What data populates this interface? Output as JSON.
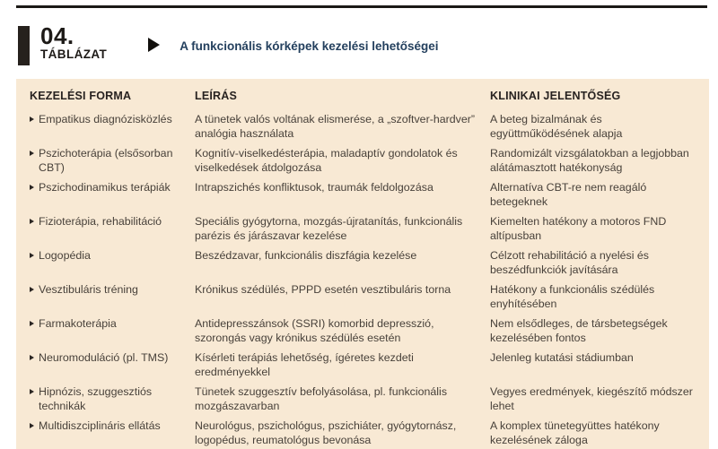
{
  "page": {
    "background": "#ffffff",
    "table_background": "#f8e9d4",
    "rule_color": "#1b1916",
    "title_color": "#24405e",
    "body_text_color": "#48413a"
  },
  "caption": {
    "number": "04.",
    "label": "TÁBLÁZAT",
    "title": "A funkcionális kórképek kezelési lehetőségei"
  },
  "table": {
    "columns": {
      "form": "KEZELÉSI FORMA",
      "description": "LEÍRÁS",
      "significance": "KLINIKAI JELENTŐSÉG"
    },
    "rows": [
      {
        "form": "Empatikus diagnózisközlés",
        "description": "A tünetek valós voltának elismerése, a „szoftver-hardver” analógia használata",
        "significance": "A beteg bizalmának és együttműködésének alapja"
      },
      {
        "form": "Pszichoterápia (elsősorban CBT)",
        "description": "Kognitív-viselkedésterápia, maladaptív gondolatok és viselkedések átdolgozása",
        "significance": "Randomizált vizsgálatokban a legjobban alátámasztott hatékonyság"
      },
      {
        "form": "Pszichodinamikus terápiák",
        "description": "Intrapszichés konfliktusok, traumák feldolgozása",
        "significance": "Alternatíva CBT-re nem reagáló betegeknek"
      },
      {
        "form": "Fizioterápia, rehabilitáció",
        "description": "Speciális gyógytorna, mozgás-újratanítás, funkcionális parézis és járászavar kezelése",
        "significance": "Kiemelten hatékony a motoros FND altípusban"
      },
      {
        "form": "Logopédia",
        "description": "Beszédzavar, funkcionális diszfágia kezelése",
        "significance": "Célzott rehabilitáció a nyelési és beszédfunkciók javítására"
      },
      {
        "form": "Vesztibuláris tréning",
        "description": "Krónikus szédülés, PPPD esetén vesztibuláris torna",
        "significance": "Hatékony a funkcionális szédülés enyhítésében"
      },
      {
        "form": "Farmakoterápia",
        "description": "Antidepresszánsok (SSRI) komorbid depresszió, szorongás vagy krónikus szédülés esetén",
        "significance": "Nem elsődleges, de társbetegségek kezelésében fontos"
      },
      {
        "form": "Neuromoduláció (pl. TMS)",
        "description": "Kísérleti terápiás lehetőség, ígéretes kezdeti eredményekkel",
        "significance": "Jelenleg kutatási stádiumban"
      },
      {
        "form": "Hipnózis, szuggesztiós technikák",
        "description": "Tünetek szuggesztív befolyásolása, pl. funkcionális mozgászavarban",
        "significance": "Vegyes eredmények, kiegészítő módszer lehet"
      },
      {
        "form": "Multidiszciplináris ellátás",
        "description": "Neurológus, pszichológus, pszichiáter, gyógytornász, logopédus, reumatológus bevonása",
        "significance": "A komplex tünetegyüttes hatékony kezelésének záloga"
      }
    ]
  }
}
